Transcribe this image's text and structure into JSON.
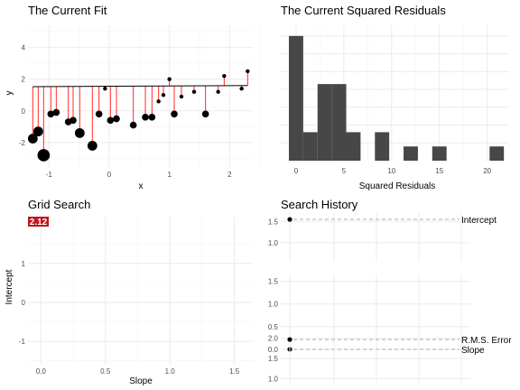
{
  "chart_data": [
    {
      "type": "scatter",
      "title": "The Current Fit",
      "xlabel": "x",
      "ylabel": "y",
      "xlim": [
        -1.35,
        2.4
      ],
      "ylim": [
        -3.6,
        5.4
      ],
      "xticks": [
        -1,
        0,
        1,
        2
      ],
      "yticks": [
        -2,
        0,
        2,
        4
      ],
      "fit_line": {
        "intercept": 1.55,
        "slope": 0.02
      },
      "points": [
        {
          "x": -1.27,
          "y": -1.75,
          "size": 3
        },
        {
          "x": -1.18,
          "y": -1.3,
          "size": 3
        },
        {
          "x": -1.09,
          "y": -2.8,
          "size": 4
        },
        {
          "x": -0.97,
          "y": -0.2,
          "size": 2
        },
        {
          "x": -0.88,
          "y": -0.1,
          "size": 2
        },
        {
          "x": -0.68,
          "y": -0.7,
          "size": 2
        },
        {
          "x": -0.6,
          "y": -0.6,
          "size": 2
        },
        {
          "x": -0.49,
          "y": -1.4,
          "size": 3
        },
        {
          "x": -0.28,
          "y": -2.2,
          "size": 3
        },
        {
          "x": -0.17,
          "y": -0.2,
          "size": 2
        },
        {
          "x": -0.07,
          "y": 1.4,
          "size": 1
        },
        {
          "x": 0.02,
          "y": -0.6,
          "size": 2
        },
        {
          "x": 0.12,
          "y": -0.5,
          "size": 2
        },
        {
          "x": 0.4,
          "y": -0.9,
          "size": 2
        },
        {
          "x": 0.6,
          "y": -0.4,
          "size": 2
        },
        {
          "x": 0.71,
          "y": -0.4,
          "size": 2
        },
        {
          "x": 0.82,
          "y": 0.6,
          "size": 1
        },
        {
          "x": 0.9,
          "y": 1.0,
          "size": 1
        },
        {
          "x": 1.0,
          "y": 2.0,
          "size": 1
        },
        {
          "x": 1.08,
          "y": -0.2,
          "size": 2
        },
        {
          "x": 1.2,
          "y": 0.9,
          "size": 1
        },
        {
          "x": 1.41,
          "y": 1.2,
          "size": 1
        },
        {
          "x": 1.6,
          "y": -0.2,
          "size": 2
        },
        {
          "x": 1.81,
          "y": 1.2,
          "size": 1
        },
        {
          "x": 1.91,
          "y": 2.2,
          "size": 1
        },
        {
          "x": 2.2,
          "y": 1.4,
          "size": 1
        },
        {
          "x": 2.3,
          "y": 2.5,
          "size": 1
        }
      ]
    },
    {
      "type": "bar",
      "title": "The Current Squared Residuals",
      "xlabel": "Squared Residuals",
      "ylabel": "",
      "xlim": [
        -1.6,
        22.3
      ],
      "ylim": [
        0,
        7.6
      ],
      "xticks": [
        0,
        5,
        10,
        15,
        20
      ],
      "bin_width": 1.5,
      "bins": [
        {
          "x0": -0.75,
          "count": 7
        },
        {
          "x0": 0.75,
          "count": 1.6
        },
        {
          "x0": 2.25,
          "count": 4.3
        },
        {
          "x0": 3.75,
          "count": 4.3
        },
        {
          "x0": 5.25,
          "count": 1.6
        },
        {
          "x0": 8.25,
          "count": 1.6
        },
        {
          "x0": 11.25,
          "count": 0.8
        },
        {
          "x0": 14.25,
          "count": 0.8
        },
        {
          "x0": 20.25,
          "count": 0.8
        }
      ]
    },
    {
      "type": "scatter",
      "title": "Grid Search",
      "xlabel": "Slope",
      "ylabel": "Intercept",
      "xlim": [
        -0.1,
        1.65
      ],
      "ylim": [
        -1.6,
        2.2
      ],
      "xticks": [
        0.0,
        0.5,
        1.0,
        1.5
      ],
      "xtick_labels": [
        "0.0",
        "0.5",
        "1.0",
        "1.5"
      ],
      "yticks": [
        -1,
        0,
        1
      ],
      "badge": "2.12",
      "badge_color": "#c0141b"
    },
    {
      "type": "line",
      "title": "Search History",
      "panels": [
        {
          "name": "Intercept",
          "ylim": [
            0.55,
            1.7
          ],
          "yticks": [
            0.5,
            1.0,
            1.5
          ],
          "tick_labels": [
            "0.5",
            "1.0",
            "1.5"
          ],
          "value": 1.55
        },
        {
          "name": "Slope",
          "ylim": [
            -0.1,
            1.65
          ],
          "yticks": [
            0.0,
            0.5,
            1.0,
            1.5
          ],
          "tick_labels": [
            "0.0",
            "0.5",
            "1.0",
            "1.5"
          ],
          "value": 0.0
        },
        {
          "name": "R.M.S. Error",
          "ylim": [
            0.9,
            2.15
          ],
          "yticks": [
            1.0,
            1.5,
            2.0
          ],
          "tick_labels": [
            "1.0",
            "1.5",
            "2.0"
          ],
          "value": 1.97
        }
      ]
    }
  ]
}
